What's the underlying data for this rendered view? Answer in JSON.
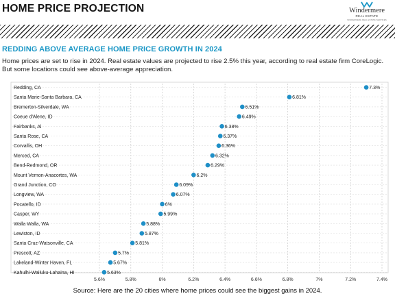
{
  "header": {
    "title": "HOME PRICE PROJECTION",
    "logo_name": "Windermere",
    "logo_sub": "REAL ESTATE",
    "logo_tagline": "WINDERMERE REAL ESTATE SERVICES"
  },
  "subtitle": "REDDING ABOVE AVERAGE HOME PRICE GROWTH IN 2024",
  "intro": {
    "line1": "Home prices are set to rise in 2024. Real estate values are projected to rise 2.5% this year, according to real estate firm CoreLogic.",
    "line2": "But some locations could see above-average appreciation."
  },
  "source": "Source: Here are the 20 cities where home prices could see the biggest gains in 2024.",
  "colors": {
    "accent": "#1b97c6",
    "dot": "#1e8fc7"
  },
  "chart_data": {
    "type": "scatter",
    "title": "",
    "xlabel": "",
    "ylabel": "",
    "xlim": [
      5.6,
      7.4
    ],
    "x_ticks": [
      "5.6%",
      "5.8%",
      "6%",
      "6.2%",
      "6.4%",
      "6.6%",
      "6.8%",
      "7%",
      "7.2%",
      "7.4%"
    ],
    "x_tick_values": [
      5.6,
      5.8,
      6.0,
      6.2,
      6.4,
      6.6,
      6.8,
      7.0,
      7.2,
      7.4
    ],
    "grid": "vertical dashed",
    "categories": [
      "Redding, CA",
      "Santa Marie-Santa Barbara, CA",
      "Bremerton-Silverdale, WA",
      "Coeue d'Alene, ID",
      "Fairbanks, Al",
      "Santa Rose, CA",
      "Corvallis, OH",
      "Merced, CA",
      "Bend-Redmond, OR",
      "Mount Vernon-Anacortes, WA",
      "Grand Junction, CO",
      "Longview, WA",
      "Pocatello, ID",
      "Casper, WY",
      "Walla Walla, WA",
      "Lewiston, ID",
      "Santa Cruz-Watsonville, CA",
      "Prescott, AZ",
      "Lakeland-Winter Haven, FL",
      "Kahulhi-Wailuku-Lahaina, HI"
    ],
    "values": [
      7.3,
      6.81,
      6.51,
      6.49,
      6.38,
      6.37,
      6.36,
      6.32,
      6.29,
      6.2,
      6.09,
      6.07,
      6.0,
      5.99,
      5.88,
      5.87,
      5.81,
      5.7,
      5.67,
      5.63
    ],
    "labels": [
      "7.3%",
      "6.81%",
      "6.51%",
      "6.49%",
      "6.38%",
      "6.37%",
      "6.36%",
      "6.32%",
      "6.29%",
      "6.2%",
      "6.09%",
      "6.07%",
      "6%",
      "5.99%",
      "5.88%",
      "5.87%",
      "5.81%",
      "5.7%",
      "5.67%",
      "5.63%"
    ]
  }
}
